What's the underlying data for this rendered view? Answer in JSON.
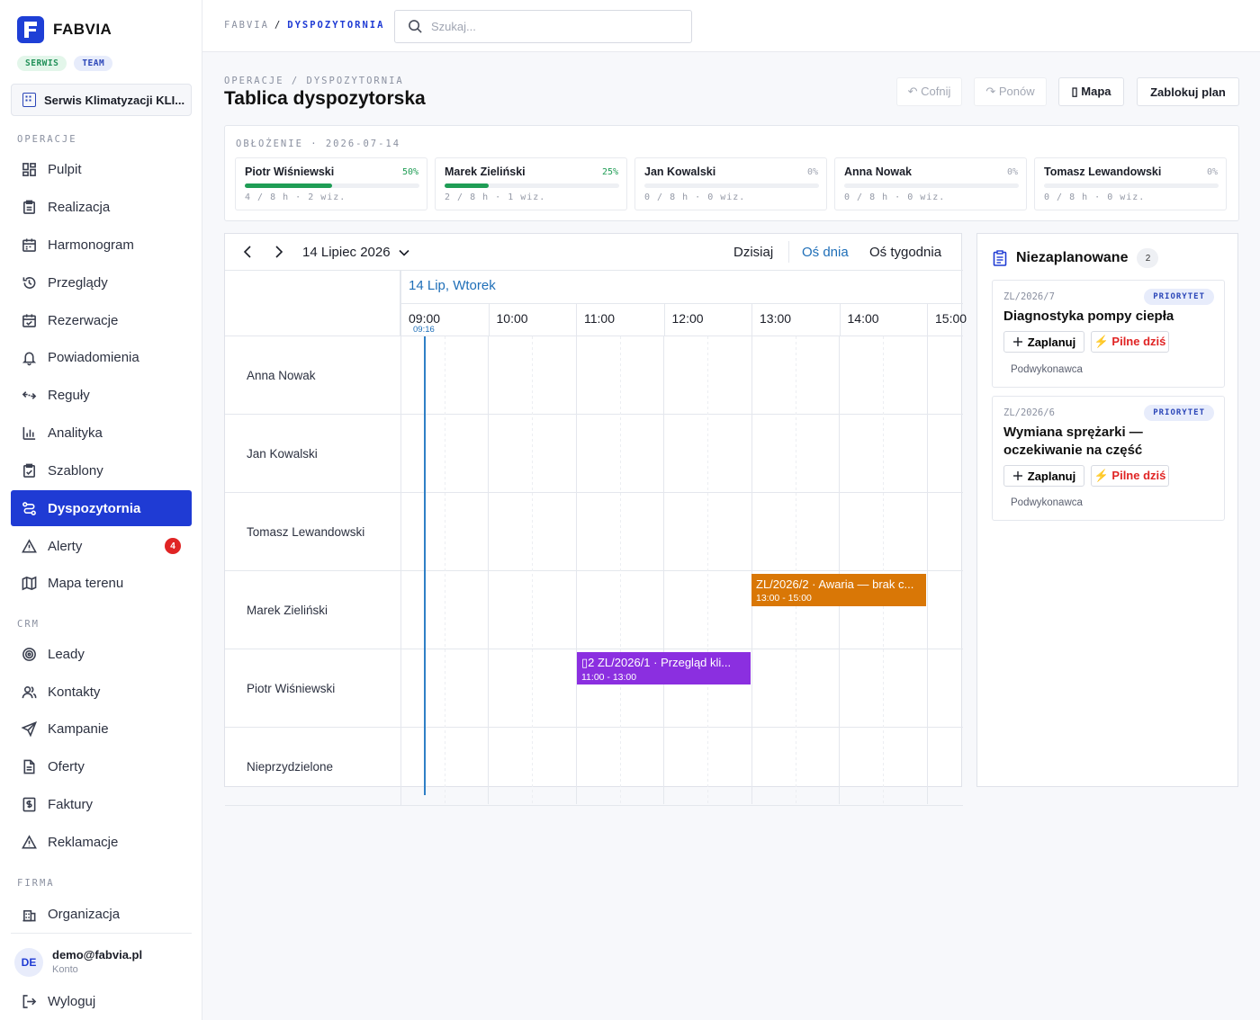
{
  "brand": {
    "name": "FABVIA",
    "tags": [
      "SERWIS",
      "TEAM"
    ]
  },
  "org": {
    "name": "Serwis Klimatyzacji KLI..."
  },
  "sidebar": {
    "sections": {
      "operacje": "OPERACJE",
      "crm": "CRM",
      "firma": "FIRMA"
    },
    "operacje_items": [
      {
        "label": "Pulpit",
        "icon": "dashboard-icon"
      },
      {
        "label": "Realizacja",
        "icon": "clipboard-icon"
      },
      {
        "label": "Harmonogram",
        "icon": "calendar-icon"
      },
      {
        "label": "Przeglądy",
        "icon": "history-icon"
      },
      {
        "label": "Rezerwacje",
        "icon": "calendar-check-icon"
      },
      {
        "label": "Powiadomienia",
        "icon": "bell-icon"
      },
      {
        "label": "Reguły",
        "icon": "rules-icon"
      },
      {
        "label": "Analityka",
        "icon": "chart-icon"
      },
      {
        "label": "Szablony",
        "icon": "template-icon"
      },
      {
        "label": "Dyspozytornia",
        "icon": "route-icon",
        "active": true
      },
      {
        "label": "Alerty",
        "icon": "alert-icon",
        "count": "4"
      },
      {
        "label": "Mapa terenu",
        "icon": "map-icon"
      }
    ],
    "crm_items": [
      {
        "label": "Leady",
        "icon": "target-icon"
      },
      {
        "label": "Kontakty",
        "icon": "users-icon"
      },
      {
        "label": "Kampanie",
        "icon": "send-icon"
      },
      {
        "label": "Oferty",
        "icon": "document-icon"
      },
      {
        "label": "Faktury",
        "icon": "invoice-icon"
      },
      {
        "label": "Reklamacje",
        "icon": "warning-icon"
      }
    ],
    "firma_items": [
      {
        "label": "Organizacja",
        "icon": "building-icon"
      }
    ],
    "user": {
      "initials": "DE",
      "email": "demo@fabvia.pl",
      "sub": "Konto"
    },
    "logout": "Wyloguj"
  },
  "topbar": {
    "crumb_root": "FABVIA",
    "crumb_sep": "/",
    "crumb_current": "DYSPOZYTORNIA",
    "search_placeholder": "Szukaj..."
  },
  "page": {
    "crumbs": "OPERACJE / DYSPOZYTORNIA",
    "title": "Tablica dyspozytorska",
    "buttons": {
      "undo": "↶ Cofnij",
      "redo": "↷ Ponów",
      "map": "▯ Mapa",
      "lock": "Zablokuj plan"
    }
  },
  "load": {
    "label": "OBŁOŻENIE · 2026-07-14",
    "technicians": [
      {
        "name": "Piotr Wiśniewski",
        "pct": "50%",
        "fill": 0.5,
        "sub": "4 / 8 h · 2 wiz."
      },
      {
        "name": "Marek Zieliński",
        "pct": "25%",
        "fill": 0.25,
        "sub": "2 / 8 h · 1 wiz."
      },
      {
        "name": "Jan Kowalski",
        "pct": "0%",
        "fill": 0,
        "sub": "0 / 8 h · 0 wiz."
      },
      {
        "name": "Anna Nowak",
        "pct": "0%",
        "fill": 0,
        "sub": "0 / 8 h · 0 wiz."
      },
      {
        "name": "Tomasz Lewandowski",
        "pct": "0%",
        "fill": 0,
        "sub": "0 / 8 h · 0 wiz."
      }
    ]
  },
  "calendar": {
    "date_label": "14 Lipiec 2026",
    "today": "Dzisiaj",
    "view_day": "Oś dnia",
    "view_week": "Oś tygodnia",
    "day_header": "14 Lip, Wtorek",
    "hours": [
      "09:00",
      "10:00",
      "11:00",
      "12:00",
      "13:00",
      "14:00",
      "15:00"
    ],
    "now": "09:16",
    "resources": [
      "Anna Nowak",
      "Jan Kowalski",
      "Tomasz Lewandowski",
      "Marek Zieliński",
      "Piotr Wiśniewski",
      "Nieprzydzielone"
    ],
    "events": [
      {
        "title": "ZL/2026/2 · Awaria — brak c...",
        "time": "13:00 - 15:00",
        "color": "#d97706"
      },
      {
        "title": "▯2 ZL/2026/1 · Przegląd kli...",
        "time": "11:00 - 13:00",
        "color": "#8b2fe0"
      }
    ]
  },
  "unplanned": {
    "title": "Niezaplanowane",
    "count": "2",
    "tasks": [
      {
        "id": "ZL/2026/7",
        "badge": "PRIORYTET",
        "title": "Diagnostyka pompy ciepła",
        "plan": "Zaplanuj",
        "urgent": "⚡ Pilne dziś",
        "sub": "Podwykonawca"
      },
      {
        "id": "ZL/2026/6",
        "badge": "PRIORYTET",
        "title": "Wymiana sprężarki — oczekiwanie na część",
        "plan": "Zaplanuj",
        "urgent": "⚡ Pilne dziś",
        "sub": "Podwykonawca"
      }
    ]
  },
  "colors": {
    "accent": "#1f3bd4",
    "success": "#1f9d55",
    "danger": "#e02424",
    "now_line": "#2f7fc6"
  }
}
